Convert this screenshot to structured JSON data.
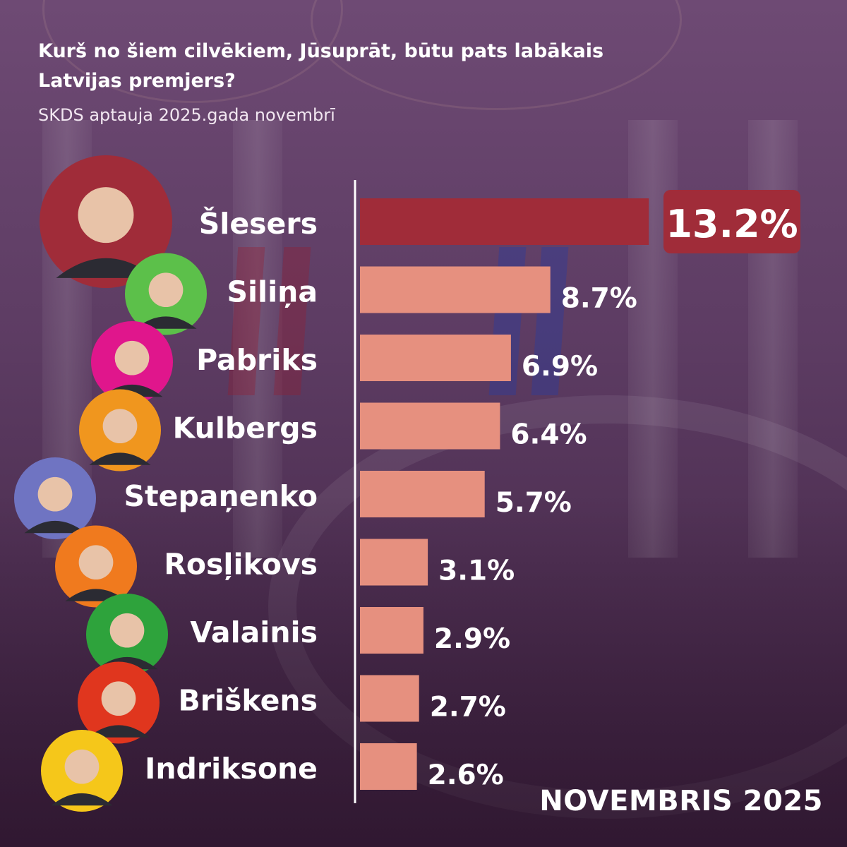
{
  "header": {
    "title": "Kurš no šiem cilvēkiem, Jūsuprāt, būtu pats labākais Latvijas premjers?",
    "subtitle": "SKDS aptauja 2025.gada novembrī"
  },
  "footer": {
    "label": "NOVEMBRIS  2025"
  },
  "chart_data": {
    "type": "bar",
    "orientation": "horizontal",
    "title": "Kurš no šiem cilvēkiem, Jūsuprāt, būtu pats labākais Latvijas premjers?",
    "subtitle": "SKDS aptauja 2025.gada novembrī",
    "categories": [
      "Šlesers",
      "Siliņa",
      "Pabriks",
      "Kulbergs",
      "Stepaņenko",
      "Rosļikovs",
      "Valainis",
      "Briškens",
      "Indriksone"
    ],
    "values": [
      13.2,
      8.7,
      6.9,
      6.4,
      5.7,
      3.1,
      2.9,
      2.7,
      2.6
    ],
    "value_labels": [
      "13.2%",
      "8.7%",
      "6.9%",
      "6.4%",
      "5.7%",
      "3.1%",
      "2.9%",
      "2.7%",
      "2.6%"
    ],
    "unit": "%",
    "highlight_index": 0,
    "avatar_colors": [
      "#a02c39",
      "#5cc04a",
      "#e0168c",
      "#f0961e",
      "#6f74c2",
      "#f07a1e",
      "#2ea33c",
      "#e0361e",
      "#f5c71a"
    ],
    "colors": {
      "highlight": "#a02c39",
      "bar": "#e6907f",
      "axis": "#ffffff",
      "text": "#ffffff"
    },
    "grid": false,
    "legend": "none"
  }
}
